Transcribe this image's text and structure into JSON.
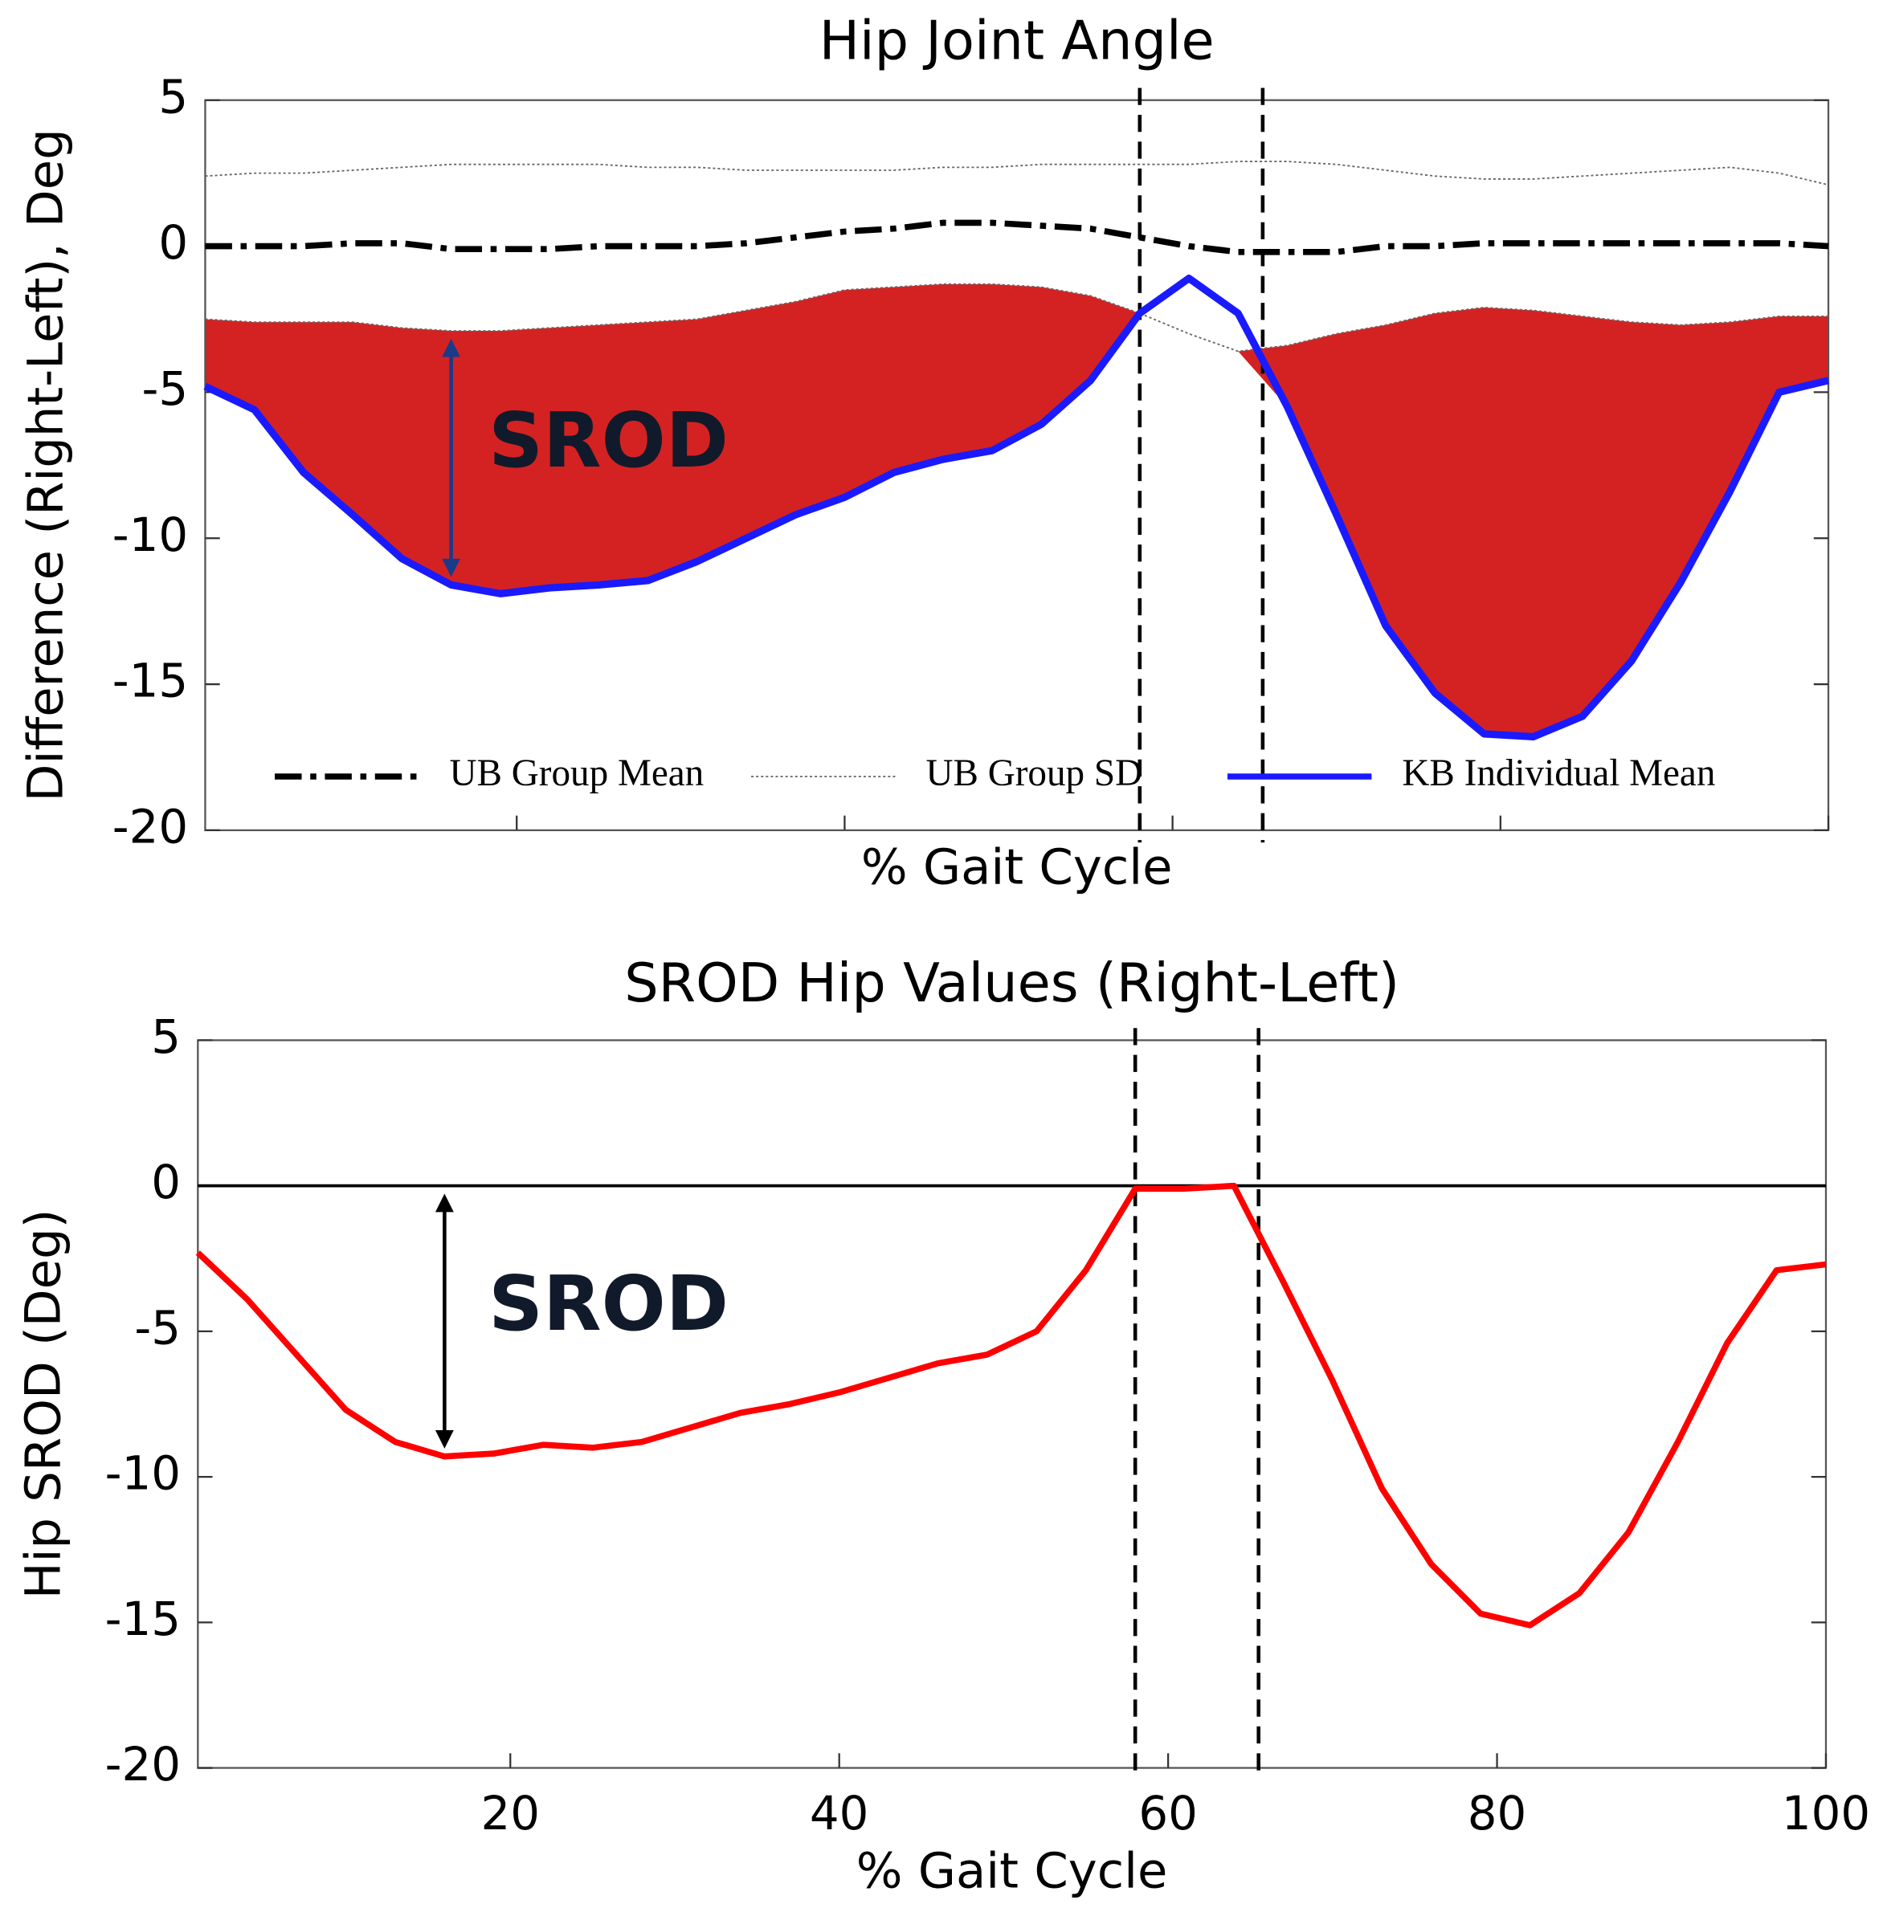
{
  "chart_data": [
    {
      "type": "line",
      "title": "Hip Joint Angle",
      "xlabel": "% Gait Cycle",
      "ylabel": "Difference (Right-Left), Deg",
      "x": [
        1,
        4,
        7,
        10,
        13,
        16,
        19,
        22,
        25,
        28,
        31,
        34,
        37,
        40,
        43,
        46,
        49,
        52,
        55,
        58,
        61,
        64,
        67,
        70,
        73,
        76,
        79,
        82,
        85,
        88,
        91,
        94,
        97,
        100
      ],
      "xlim": [
        1,
        100
      ],
      "xticks": [
        20,
        40,
        60,
        80,
        100
      ],
      "xtick_labels": false,
      "ylim": [
        -20,
        5
      ],
      "yticks": [
        -20,
        -15,
        -10,
        -5,
        0,
        5
      ],
      "vlines": [
        58,
        65.5
      ],
      "annotation": "SROD",
      "shade_color": "#d42222",
      "series": [
        {
          "name": "UB Group Mean",
          "color": "#000000",
          "style": "dashdot",
          "values": [
            0,
            0,
            0,
            0.1,
            0.1,
            -0.1,
            -0.1,
            -0.1,
            0,
            0,
            0,
            0.1,
            0.3,
            0.5,
            0.6,
            0.8,
            0.8,
            0.7,
            0.6,
            0.3,
            0,
            -0.2,
            -0.2,
            -0.2,
            0,
            0,
            0.1,
            0.1,
            0.1,
            0.1,
            0.1,
            0.1,
            0.1,
            0
          ]
        },
        {
          "name": "UB Group SD",
          "color": "#666666",
          "style": "dotted",
          "values": [
            2.4,
            2.5,
            2.5,
            2.6,
            2.7,
            2.8,
            2.8,
            2.8,
            2.8,
            2.7,
            2.7,
            2.6,
            2.6,
            2.6,
            2.6,
            2.7,
            2.7,
            2.8,
            2.8,
            2.8,
            2.8,
            2.9,
            2.9,
            2.8,
            2.6,
            2.4,
            2.3,
            2.3,
            2.4,
            2.5,
            2.6,
            2.7,
            2.5,
            2.1
          ],
          "lower": [
            -2.5,
            -2.6,
            -2.6,
            -2.6,
            -2.8,
            -2.9,
            -2.9,
            -2.8,
            -2.7,
            -2.6,
            -2.5,
            -2.2,
            -1.9,
            -1.5,
            -1.4,
            -1.3,
            -1.3,
            -1.4,
            -1.7,
            -2.3,
            -3.0,
            -3.6,
            -3.4,
            -3.0,
            -2.7,
            -2.3,
            -2.1,
            -2.2,
            -2.4,
            -2.6,
            -2.7,
            -2.6,
            -2.4,
            -2.4
          ]
        },
        {
          "name": "KB Individual Mean",
          "color": "#1a1aff",
          "style": "solid",
          "values": [
            -4.8,
            -5.6,
            -7.75,
            -9.2,
            -10.7,
            -11.6,
            -11.9,
            -11.7,
            -11.6,
            -11.45,
            -10.8,
            -10.0,
            -9.2,
            -8.6,
            -7.75,
            -7.3,
            -7.0,
            -6.1,
            -4.6,
            -2.3,
            -1.1,
            -2.3,
            -5.5,
            -9.2,
            -13.0,
            -15.3,
            -16.7,
            -16.8,
            -16.1,
            -14.2,
            -11.5,
            -8.4,
            -5.0,
            -4.6
          ]
        }
      ]
    },
    {
      "type": "line",
      "title": "SROD Hip Values (Right-Left)",
      "xlabel": "% Gait Cycle",
      "ylabel": "Hip SROD (Deg)",
      "x": [
        1,
        4,
        7,
        10,
        13,
        16,
        19,
        22,
        25,
        28,
        31,
        34,
        37,
        40,
        43,
        46,
        49,
        52,
        55,
        58,
        61,
        64,
        67,
        70,
        73,
        76,
        79,
        82,
        85,
        88,
        91,
        94,
        97,
        100
      ],
      "xlim": [
        1,
        100
      ],
      "xticks": [
        20,
        40,
        60,
        80,
        100
      ],
      "xtick_labels": true,
      "ylim": [
        -20,
        5
      ],
      "yticks": [
        -20,
        -15,
        -10,
        -5,
        0,
        5
      ],
      "vlines": [
        58,
        65.5
      ],
      "hline": 0,
      "annotation": "SROD",
      "series": [
        {
          "name": "Hip SROD",
          "color": "#ff0000",
          "style": "solid",
          "values": [
            -2.3,
            -3.9,
            -5.8,
            -7.7,
            -8.8,
            -9.3,
            -9.2,
            -8.9,
            -9.0,
            -8.8,
            -8.3,
            -7.8,
            -7.5,
            -7.1,
            -6.6,
            -6.1,
            -5.8,
            -5.0,
            -2.9,
            -0.1,
            -0.1,
            0,
            -3.3,
            -6.7,
            -10.4,
            -13.0,
            -14.7,
            -15.1,
            -14.0,
            -11.9,
            -8.8,
            -5.4,
            -2.9,
            -2.7
          ]
        }
      ]
    }
  ]
}
